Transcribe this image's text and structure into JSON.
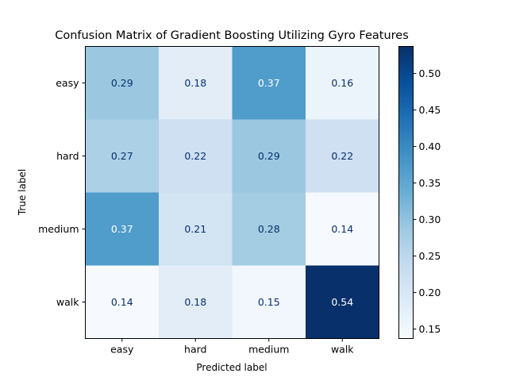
{
  "chart_data": {
    "type": "heatmap",
    "title": "Confusion Matrix of Gradient Boosting Utilizing Gyro Features",
    "xlabel": "Predicted label",
    "ylabel": "True label",
    "x_categories": [
      "easy",
      "hard",
      "medium",
      "walk"
    ],
    "y_categories": [
      "easy",
      "hard",
      "medium",
      "walk"
    ],
    "values": [
      [
        0.29,
        0.18,
        0.37,
        0.16
      ],
      [
        0.27,
        0.22,
        0.29,
        0.22
      ],
      [
        0.37,
        0.21,
        0.28,
        0.14
      ],
      [
        0.14,
        0.18,
        0.15,
        0.54
      ]
    ],
    "colormap": "Blues",
    "colorbar": {
      "min": 0.137,
      "max": 0.537,
      "ticks": [
        "0.15",
        "0.20",
        "0.25",
        "0.30",
        "0.35",
        "0.40",
        "0.45",
        "0.50"
      ]
    },
    "grid": false,
    "legend": "colorbar-right"
  }
}
